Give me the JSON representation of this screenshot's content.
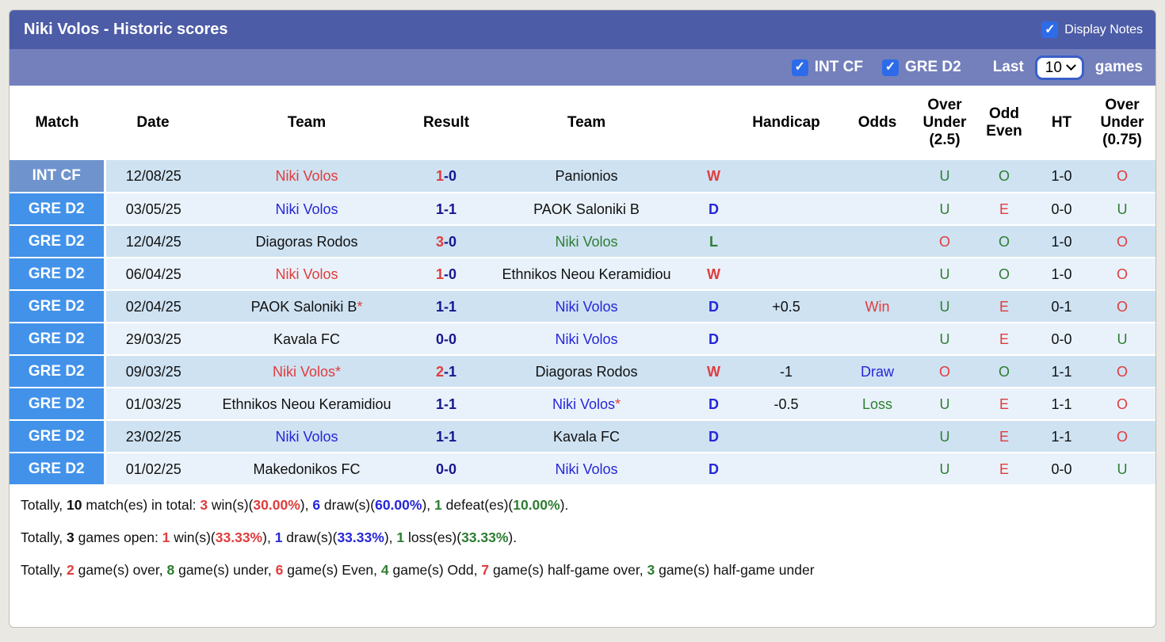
{
  "palette": {
    "header_bar": "#4D5CA6",
    "subheader_bar": "#7480BC",
    "league_int_cf": "#6F94CD",
    "league_gre_d2": "#4292EA",
    "row_dark": "#CEE2F2",
    "row_light": "#E9F2FA",
    "win_red": "#E03C3C",
    "draw_blue": "#2626D9",
    "score_navy": "#16168F",
    "loss_green": "#2E7D32",
    "checkbox_blue": "#2D6BE8"
  },
  "header": {
    "title": "Niki Volos - Historic scores",
    "display_notes": {
      "label": "Display Notes",
      "checked": true,
      "check_glyph": "✓"
    },
    "filters": [
      {
        "label": "INT CF",
        "checked": true
      },
      {
        "label": "GRE D2",
        "checked": true
      }
    ],
    "last_label": "Last",
    "games_label": "games",
    "games_count": "10"
  },
  "table": {
    "columns": [
      "Match",
      "Date",
      "Team",
      "Result",
      "Team",
      "",
      "Handicap",
      "Odds",
      "Over\nUnder\n(2.5)",
      "Odd\nEven",
      "HT",
      "Over\nUnder\n(0.75)"
    ],
    "rows": [
      {
        "league": "INT CF",
        "league_style": "int",
        "shade": "dark",
        "date": "12/08/25",
        "team1": "Niki Volos",
        "team1_color": "red",
        "team1_star": false,
        "score1": "1",
        "score2": "0",
        "score1_color": "red",
        "score2_color": "navy",
        "team2": "Panionios",
        "team2_color": "black",
        "team2_star": false,
        "wdl": "W",
        "wdl_color": "red",
        "handicap": "",
        "odds": "",
        "odds_color": "",
        "ou25": "U",
        "ou25_color": "green",
        "oe": "O",
        "oe_color": "green",
        "ht": "1-0",
        "ou075": "O",
        "ou075_color": "red"
      },
      {
        "league": "GRE D2",
        "league_style": "gre",
        "shade": "light",
        "date": "03/05/25",
        "team1": "Niki Volos",
        "team1_color": "blue",
        "team1_star": false,
        "score1": "1",
        "score2": "1",
        "score1_color": "navy",
        "score2_color": "navy",
        "team2": "PAOK Saloniki B",
        "team2_color": "black",
        "team2_star": false,
        "wdl": "D",
        "wdl_color": "blue",
        "handicap": "",
        "odds": "",
        "odds_color": "",
        "ou25": "U",
        "ou25_color": "green",
        "oe": "E",
        "oe_color": "red",
        "ht": "0-0",
        "ou075": "U",
        "ou075_color": "green"
      },
      {
        "league": "GRE D2",
        "league_style": "gre",
        "shade": "dark",
        "date": "12/04/25",
        "team1": "Diagoras Rodos",
        "team1_color": "black",
        "team1_star": false,
        "score1": "3",
        "score2": "0",
        "score1_color": "red",
        "score2_color": "navy",
        "team2": "Niki Volos",
        "team2_color": "green",
        "team2_star": false,
        "wdl": "L",
        "wdl_color": "green",
        "handicap": "",
        "odds": "",
        "odds_color": "",
        "ou25": "O",
        "ou25_color": "red",
        "oe": "O",
        "oe_color": "green",
        "ht": "1-0",
        "ou075": "O",
        "ou075_color": "red"
      },
      {
        "league": "GRE D2",
        "league_style": "gre",
        "shade": "light",
        "date": "06/04/25",
        "team1": "Niki Volos",
        "team1_color": "red",
        "team1_star": false,
        "score1": "1",
        "score2": "0",
        "score1_color": "red",
        "score2_color": "navy",
        "team2": "Ethnikos Neou Keramidiou",
        "team2_color": "black",
        "team2_star": false,
        "wdl": "W",
        "wdl_color": "red",
        "handicap": "",
        "odds": "",
        "odds_color": "",
        "ou25": "U",
        "ou25_color": "green",
        "oe": "O",
        "oe_color": "green",
        "ht": "1-0",
        "ou075": "O",
        "ou075_color": "red"
      },
      {
        "league": "GRE D2",
        "league_style": "gre",
        "shade": "dark",
        "date": "02/04/25",
        "team1": "PAOK Saloniki B",
        "team1_color": "black",
        "team1_star": true,
        "score1": "1",
        "score2": "1",
        "score1_color": "navy",
        "score2_color": "navy",
        "team2": "Niki Volos",
        "team2_color": "blue",
        "team2_star": false,
        "wdl": "D",
        "wdl_color": "blue",
        "handicap": "+0.5",
        "odds": "Win",
        "odds_color": "red",
        "ou25": "U",
        "ou25_color": "green",
        "oe": "E",
        "oe_color": "red",
        "ht": "0-1",
        "ou075": "O",
        "ou075_color": "red"
      },
      {
        "league": "GRE D2",
        "league_style": "gre",
        "shade": "light",
        "date": "29/03/25",
        "team1": "Kavala FC",
        "team1_color": "black",
        "team1_star": false,
        "score1": "0",
        "score2": "0",
        "score1_color": "navy",
        "score2_color": "navy",
        "team2": "Niki Volos",
        "team2_color": "blue",
        "team2_star": false,
        "wdl": "D",
        "wdl_color": "blue",
        "handicap": "",
        "odds": "",
        "odds_color": "",
        "ou25": "U",
        "ou25_color": "green",
        "oe": "E",
        "oe_color": "red",
        "ht": "0-0",
        "ou075": "U",
        "ou075_color": "green"
      },
      {
        "league": "GRE D2",
        "league_style": "gre",
        "shade": "dark",
        "date": "09/03/25",
        "team1": "Niki Volos",
        "team1_color": "red",
        "team1_star": true,
        "score1": "2",
        "score2": "1",
        "score1_color": "red",
        "score2_color": "navy",
        "team2": "Diagoras Rodos",
        "team2_color": "black",
        "team2_star": false,
        "wdl": "W",
        "wdl_color": "red",
        "handicap": "-1",
        "odds": "Draw",
        "odds_color": "blue",
        "ou25": "O",
        "ou25_color": "red",
        "oe": "O",
        "oe_color": "green",
        "ht": "1-1",
        "ou075": "O",
        "ou075_color": "red"
      },
      {
        "league": "GRE D2",
        "league_style": "gre",
        "shade": "light",
        "date": "01/03/25",
        "team1": "Ethnikos Neou Keramidiou",
        "team1_color": "black",
        "team1_star": false,
        "score1": "1",
        "score2": "1",
        "score1_color": "navy",
        "score2_color": "navy",
        "team2": "Niki Volos",
        "team2_color": "blue",
        "team2_star": true,
        "wdl": "D",
        "wdl_color": "blue",
        "handicap": "-0.5",
        "odds": "Loss",
        "odds_color": "green",
        "ou25": "U",
        "ou25_color": "green",
        "oe": "E",
        "oe_color": "red",
        "ht": "1-1",
        "ou075": "O",
        "ou075_color": "red"
      },
      {
        "league": "GRE D2",
        "league_style": "gre",
        "shade": "dark",
        "date": "23/02/25",
        "team1": "Niki Volos",
        "team1_color": "blue",
        "team1_star": false,
        "score1": "1",
        "score2": "1",
        "score1_color": "navy",
        "score2_color": "navy",
        "team2": "Kavala FC",
        "team2_color": "black",
        "team2_star": false,
        "wdl": "D",
        "wdl_color": "blue",
        "handicap": "",
        "odds": "",
        "odds_color": "",
        "ou25": "U",
        "ou25_color": "green",
        "oe": "E",
        "oe_color": "red",
        "ht": "1-1",
        "ou075": "O",
        "ou075_color": "red"
      },
      {
        "league": "GRE D2",
        "league_style": "gre",
        "shade": "light",
        "date": "01/02/25",
        "team1": "Makedonikos FC",
        "team1_color": "black",
        "team1_star": false,
        "score1": "0",
        "score2": "0",
        "score1_color": "navy",
        "score2_color": "navy",
        "team2": "Niki Volos",
        "team2_color": "blue",
        "team2_star": false,
        "wdl": "D",
        "wdl_color": "blue",
        "handicap": "",
        "odds": "",
        "odds_color": "",
        "ou25": "U",
        "ou25_color": "green",
        "oe": "E",
        "oe_color": "red",
        "ht": "0-0",
        "ou075": "U",
        "ou075_color": "green"
      }
    ]
  },
  "summary": [
    {
      "segments": [
        {
          "t": "Totally, "
        },
        {
          "t": "10",
          "c": "black",
          "b": true
        },
        {
          "t": " match(es) in total: "
        },
        {
          "t": "3",
          "c": "red",
          "b": true
        },
        {
          "t": " win(s)("
        },
        {
          "t": "30.00%",
          "c": "red",
          "b": true
        },
        {
          "t": "), "
        },
        {
          "t": "6",
          "c": "blue",
          "b": true
        },
        {
          "t": " draw(s)("
        },
        {
          "t": "60.00%",
          "c": "blue",
          "b": true
        },
        {
          "t": "), "
        },
        {
          "t": "1",
          "c": "green",
          "b": true
        },
        {
          "t": " defeat(es)("
        },
        {
          "t": "10.00%",
          "c": "green",
          "b": true
        },
        {
          "t": ")."
        }
      ]
    },
    {
      "segments": [
        {
          "t": "Totally, "
        },
        {
          "t": "3",
          "c": "black",
          "b": true
        },
        {
          "t": " games open: "
        },
        {
          "t": "1",
          "c": "red",
          "b": true
        },
        {
          "t": " win(s)("
        },
        {
          "t": "33.33%",
          "c": "red",
          "b": true
        },
        {
          "t": "), "
        },
        {
          "t": "1",
          "c": "blue",
          "b": true
        },
        {
          "t": " draw(s)("
        },
        {
          "t": "33.33%",
          "c": "blue",
          "b": true
        },
        {
          "t": "), "
        },
        {
          "t": "1",
          "c": "green",
          "b": true
        },
        {
          "t": " loss(es)("
        },
        {
          "t": "33.33%",
          "c": "green",
          "b": true
        },
        {
          "t": ")."
        }
      ]
    },
    {
      "segments": [
        {
          "t": "Totally, "
        },
        {
          "t": "2",
          "c": "red",
          "b": true
        },
        {
          "t": " game(s) over, "
        },
        {
          "t": "8",
          "c": "green",
          "b": true
        },
        {
          "t": " game(s) under, "
        },
        {
          "t": "6",
          "c": "red",
          "b": true
        },
        {
          "t": " game(s) Even, "
        },
        {
          "t": "4",
          "c": "green",
          "b": true
        },
        {
          "t": " game(s) Odd, "
        },
        {
          "t": "7",
          "c": "red",
          "b": true
        },
        {
          "t": " game(s) half-game over, "
        },
        {
          "t": "3",
          "c": "green",
          "b": true
        },
        {
          "t": " game(s) half-game under"
        }
      ]
    }
  ]
}
